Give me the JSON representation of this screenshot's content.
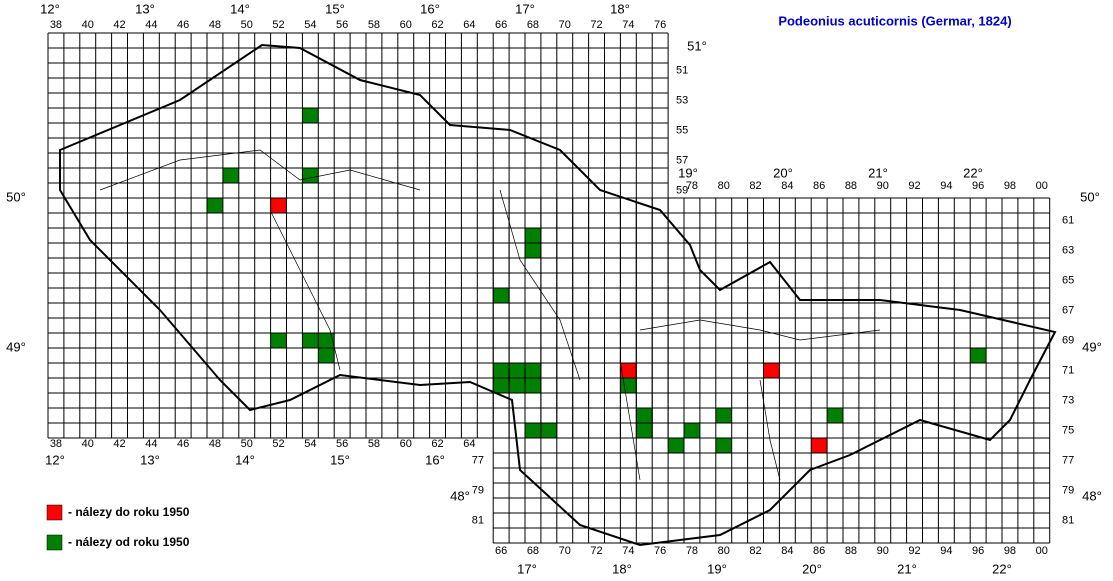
{
  "title": "Podeonius acuticornis (Germar, 1824)",
  "legend": [
    {
      "label": "- nálezy do roku 1950",
      "color": "#ff0000"
    },
    {
      "label": "- nálezy od roku 1950",
      "color": "#008000"
    }
  ],
  "columns_top_west": [
    "38",
    "40",
    "42",
    "44",
    "46",
    "48",
    "50",
    "52",
    "54",
    "56",
    "58",
    "60",
    "62",
    "64",
    "66",
    "68",
    "70",
    "72",
    "74",
    "76"
  ],
  "columns_bottom_west": [
    "38",
    "40",
    "42",
    "44",
    "46",
    "48",
    "50",
    "52",
    "54",
    "56",
    "58",
    "60",
    "62",
    "64"
  ],
  "columns_top_east": [
    "78",
    "80",
    "82",
    "84",
    "86",
    "88",
    "90",
    "92",
    "94",
    "96",
    "98",
    "00"
  ],
  "columns_bottom_east": [
    "66",
    "68",
    "70",
    "72",
    "74",
    "76",
    "78",
    "80",
    "82",
    "84",
    "86",
    "88",
    "90",
    "92",
    "94",
    "96",
    "98",
    "00"
  ],
  "rows_right_west": [
    "51",
    "53",
    "55",
    "57",
    "59"
  ],
  "rows_right_east": [
    "61",
    "63",
    "65",
    "67",
    "69",
    "71",
    "73",
    "75",
    "77",
    "79",
    "81"
  ],
  "rows_left_east": [
    "77",
    "79",
    "81"
  ],
  "meridians_top_west": [
    "12°",
    "13°",
    "14°",
    "15°",
    "16°",
    "17°",
    "18°"
  ],
  "meridians_bottom_west": [
    "12°",
    "13°",
    "14°",
    "15°",
    "16°"
  ],
  "meridians_top_east": [
    "19°",
    "20°",
    "21°",
    "22°"
  ],
  "meridians_bottom_east": [
    "17°",
    "18°",
    "19°",
    "20°",
    "21°",
    "22°"
  ],
  "parallels": {
    "p51": "51°",
    "p50_left": "50°",
    "p50_right": "50°",
    "p49_left": "49°",
    "p49_right": "49°",
    "p48_left": "48°",
    "p48_right": "48°"
  },
  "records": [
    {
      "col": 52,
      "row": 60,
      "period": 0
    },
    {
      "col": 74,
      "row": 71,
      "period": 0
    },
    {
      "col": 83,
      "row": 71,
      "period": 0
    },
    {
      "col": 86,
      "row": 76,
      "period": 0
    },
    {
      "col": 54,
      "row": 54,
      "period": 1
    },
    {
      "col": 49,
      "row": 58,
      "period": 1
    },
    {
      "col": 54,
      "row": 58,
      "period": 1
    },
    {
      "col": 48,
      "row": 60,
      "period": 1
    },
    {
      "col": 68,
      "row": 62,
      "period": 1
    },
    {
      "col": 68,
      "row": 63,
      "period": 1
    },
    {
      "col": 66,
      "row": 66,
      "period": 1
    },
    {
      "col": 52,
      "row": 69,
      "period": 1
    },
    {
      "col": 54,
      "row": 69,
      "period": 1
    },
    {
      "col": 55,
      "row": 69,
      "period": 1
    },
    {
      "col": 55,
      "row": 70,
      "period": 1
    },
    {
      "col": 66,
      "row": 71,
      "period": 1
    },
    {
      "col": 67,
      "row": 71,
      "period": 1
    },
    {
      "col": 68,
      "row": 71,
      "period": 1
    },
    {
      "col": 66,
      "row": 72,
      "period": 1
    },
    {
      "col": 67,
      "row": 72,
      "period": 1
    },
    {
      "col": 68,
      "row": 72,
      "period": 1
    },
    {
      "col": 74,
      "row": 72,
      "period": 1
    },
    {
      "col": 75,
      "row": 74,
      "period": 1
    },
    {
      "col": 75,
      "row": 75,
      "period": 1
    },
    {
      "col": 68,
      "row": 75,
      "period": 1
    },
    {
      "col": 69,
      "row": 75,
      "period": 1
    },
    {
      "col": 78,
      "row": 75,
      "period": 1
    },
    {
      "col": 77,
      "row": 76,
      "period": 1
    },
    {
      "col": 80,
      "row": 74,
      "period": 1
    },
    {
      "col": 80,
      "row": 76,
      "period": 1
    },
    {
      "col": 87,
      "row": 74,
      "period": 1
    },
    {
      "col": 96,
      "row": 70,
      "period": 1
    }
  ]
}
